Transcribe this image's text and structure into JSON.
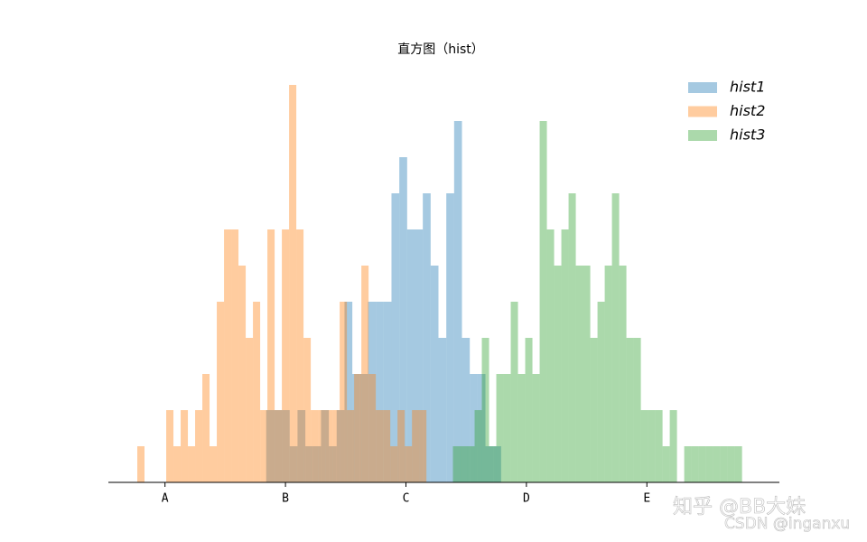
{
  "chart_data": {
    "type": "histogram",
    "title": "直方图（hist）",
    "xlim": [
      5.3,
      61
    ],
    "ylim": [
      0,
      11.5
    ],
    "xticks": [
      {
        "value": 10,
        "label": "A"
      },
      {
        "value": 20,
        "label": "B"
      },
      {
        "value": 30,
        "label": "C"
      },
      {
        "value": 40,
        "label": "D"
      },
      {
        "value": 50,
        "label": "E"
      }
    ],
    "legend": "upper right",
    "opacity": 0.4,
    "series": [
      {
        "name": "hist1",
        "color": "#1f77b4",
        "bins": [
          18.4,
          19.05,
          19.7,
          20.35,
          21,
          21.65,
          22.3,
          22.95,
          23.6,
          24.25,
          24.9,
          25.55,
          26.2,
          26.85,
          27.5,
          28.15,
          28.8,
          29.45,
          30.1,
          30.75,
          31.4,
          32.05,
          32.7,
          33.35,
          34,
          34.65,
          35.3,
          35.95,
          36.6,
          37.25,
          37.9
        ],
        "values": [
          2,
          2,
          2,
          1,
          2,
          1,
          1,
          2,
          1,
          2,
          5,
          3,
          3,
          5,
          5,
          5,
          8,
          9,
          7,
          7,
          8,
          6,
          4,
          8,
          10,
          4,
          3,
          3,
          1,
          1
        ]
      },
      {
        "name": "hist2",
        "color": "#ff7f0e",
        "bins": [
          7.7,
          8.3,
          8.9,
          9.5,
          10.1,
          10.7,
          11.3,
          11.9,
          12.5,
          13.1,
          13.7,
          14.3,
          14.9,
          15.5,
          16.1,
          16.7,
          17.3,
          17.9,
          18.5,
          19.1,
          19.7,
          20.3,
          20.9,
          21.5,
          22.1,
          22.7,
          23.3,
          23.9,
          24.5,
          25.1,
          25.7,
          26.3,
          26.9,
          27.5,
          28.1,
          28.7,
          29.3,
          29.9,
          30.5,
          31.1,
          31.7
        ],
        "values": [
          1,
          0,
          0,
          0,
          2,
          1,
          2,
          1,
          2,
          3,
          1,
          5,
          7,
          7,
          6,
          4,
          5,
          2,
          7,
          2,
          7,
          11,
          7,
          4,
          2,
          2,
          2,
          2,
          5,
          2,
          3,
          6,
          3,
          2,
          2,
          1,
          2,
          1,
          2,
          2
        ]
      },
      {
        "name": "hist3",
        "color": "#2ca02c",
        "bins": [
          33.9,
          34.5,
          35.1,
          35.7,
          36.3,
          36.9,
          37.5,
          38.1,
          38.7,
          39.3,
          39.9,
          40.5,
          41.1,
          41.7,
          42.3,
          42.9,
          43.5,
          44.1,
          44.7,
          45.3,
          45.9,
          46.5,
          47.1,
          47.7,
          48.3,
          48.9,
          49.5,
          50.1,
          50.7,
          51.3,
          51.9,
          52.5,
          53.1,
          53.7,
          54.3,
          54.9,
          55.5,
          56.1,
          56.7,
          57.3,
          57.9
        ],
        "values": [
          1,
          1,
          1,
          2,
          4,
          1,
          3,
          3,
          5,
          3,
          4,
          3,
          10,
          7,
          6,
          7,
          8,
          6,
          6,
          4,
          5,
          6,
          8,
          6,
          4,
          4,
          2,
          2,
          2,
          1,
          2,
          0,
          1,
          1,
          1,
          1,
          1,
          1,
          1,
          1
        ]
      }
    ],
    "watermarks": [
      "知乎 @BB大妹",
      "CSDN @inganxu"
    ]
  }
}
